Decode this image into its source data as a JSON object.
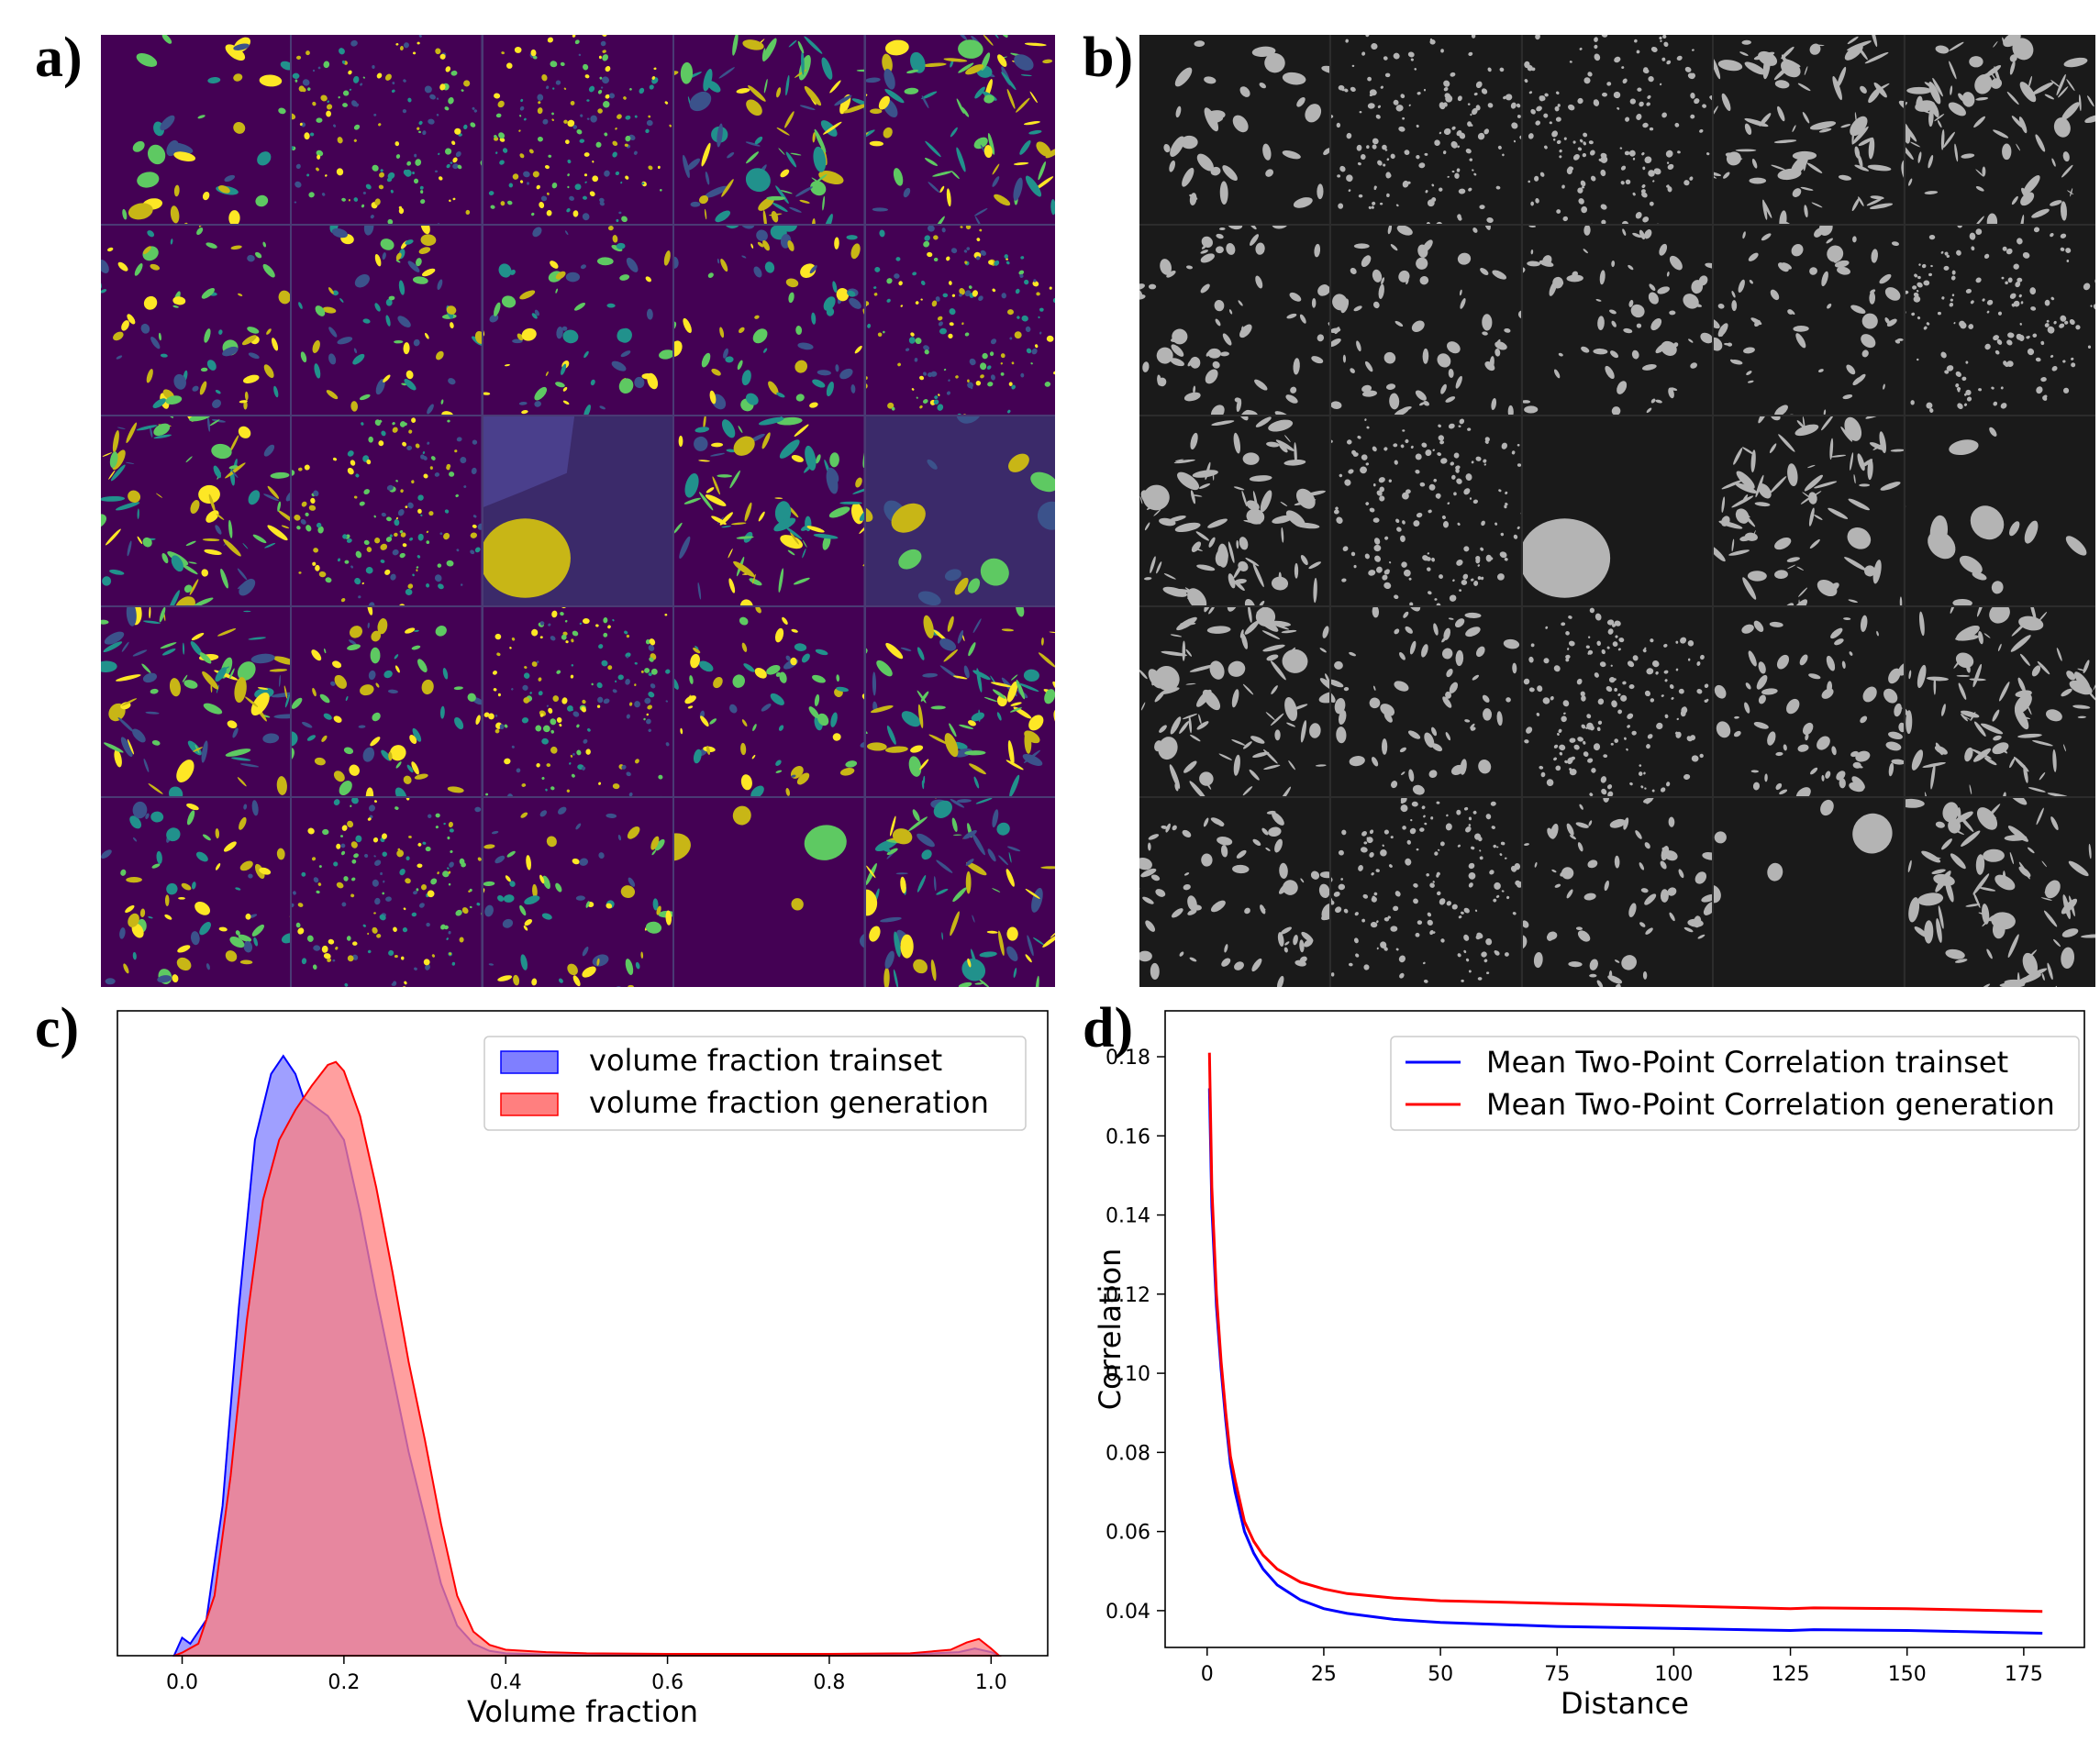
{
  "panels": {
    "a": {
      "letter": "a)"
    },
    "b": {
      "letter": "b)"
    },
    "c": {
      "letter": "c)"
    },
    "d": {
      "letter": "d)"
    }
  },
  "mosaics": {
    "a": {
      "colormap": "viridis",
      "background": "#440154",
      "foreground": [
        "#21918c",
        "#3b528b",
        "#5ec962",
        "#fde725",
        "#c8b616"
      ]
    },
    "b": {
      "colormap": "gray",
      "background": "#1a1a1a",
      "foreground": [
        "#b4b4b4"
      ]
    }
  },
  "chart_data": [
    {
      "panel": "c",
      "type": "area",
      "title": "",
      "xlabel": "Volume fraction",
      "ylabel": "",
      "xlim": [
        -0.08,
        1.07
      ],
      "ylim": [
        0,
        1
      ],
      "xticks": [
        "0.0",
        "0.2",
        "0.4",
        "0.6",
        "0.8",
        "1.0"
      ],
      "yticks_shown": false,
      "legend_position": "top-right",
      "series": [
        {
          "name": "volume fraction trainset",
          "color": "#0000ff",
          "fill": "#7f7fff",
          "x": [
            -0.01,
            0.0,
            0.01,
            0.03,
            0.05,
            0.07,
            0.09,
            0.11,
            0.125,
            0.14,
            0.15,
            0.16,
            0.18,
            0.2,
            0.22,
            0.24,
            0.26,
            0.28,
            0.3,
            0.32,
            0.34,
            0.36,
            0.38,
            0.4,
            0.45,
            0.5,
            0.6,
            0.7,
            0.8,
            0.9,
            0.96,
            0.98,
            1.0,
            1.01
          ],
          "y": [
            0.0,
            0.03,
            0.02,
            0.06,
            0.25,
            0.58,
            0.86,
            0.97,
            1.0,
            0.97,
            0.93,
            0.92,
            0.9,
            0.86,
            0.74,
            0.6,
            0.47,
            0.34,
            0.23,
            0.12,
            0.05,
            0.02,
            0.008,
            0.004,
            0.002,
            0.001,
            0.001,
            0.001,
            0.001,
            0.002,
            0.006,
            0.012,
            0.006,
            0.0
          ]
        },
        {
          "name": "volume fraction generation",
          "color": "#ff0000",
          "fill": "#ff7f7f",
          "x": [
            -0.01,
            0.0,
            0.02,
            0.04,
            0.06,
            0.08,
            0.1,
            0.12,
            0.14,
            0.16,
            0.18,
            0.19,
            0.2,
            0.22,
            0.24,
            0.26,
            0.28,
            0.3,
            0.32,
            0.34,
            0.36,
            0.38,
            0.4,
            0.45,
            0.5,
            0.6,
            0.7,
            0.8,
            0.9,
            0.95,
            0.97,
            0.985,
            1.0,
            1.01
          ],
          "y": [
            0.0,
            0.005,
            0.02,
            0.1,
            0.3,
            0.56,
            0.76,
            0.86,
            0.91,
            0.95,
            0.985,
            0.99,
            0.975,
            0.9,
            0.78,
            0.64,
            0.49,
            0.36,
            0.22,
            0.1,
            0.04,
            0.018,
            0.01,
            0.006,
            0.004,
            0.003,
            0.003,
            0.003,
            0.004,
            0.01,
            0.022,
            0.028,
            0.012,
            0.0
          ]
        }
      ]
    },
    {
      "panel": "d",
      "type": "line",
      "title": "",
      "xlabel": "Distance",
      "ylabel": "Correlation",
      "xlim": [
        -9,
        188
      ],
      "ylim": [
        0.0307,
        0.1916
      ],
      "xticks": [
        0,
        25,
        50,
        75,
        100,
        125,
        150,
        175
      ],
      "yticks": [
        0.04,
        0.06,
        0.08,
        0.1,
        0.12,
        0.14,
        0.16,
        0.18
      ],
      "grid": false,
      "legend_position": "top-right",
      "series": [
        {
          "name": "Mean Two-Point Correlation trainset",
          "color": "#0000ff",
          "x": [
            0.5,
            1,
            2,
            3,
            4,
            5,
            6,
            8,
            10,
            12,
            15,
            20,
            25,
            30,
            40,
            50,
            75,
            100,
            125,
            130,
            150,
            179
          ],
          "y": [
            0.172,
            0.142,
            0.117,
            0.101,
            0.088,
            0.077,
            0.07,
            0.06,
            0.0545,
            0.0505,
            0.0465,
            0.0427,
            0.0405,
            0.0393,
            0.0378,
            0.037,
            0.036,
            0.0355,
            0.035,
            0.0352,
            0.035,
            0.0343
          ]
        },
        {
          "name": "Mean Two-Point Correlation generation",
          "color": "#ff0000",
          "x": [
            0.5,
            1,
            2,
            3,
            4,
            5,
            6,
            8,
            10,
            12,
            15,
            20,
            25,
            30,
            40,
            50,
            75,
            100,
            125,
            130,
            150,
            179
          ],
          "y": [
            0.181,
            0.147,
            0.12,
            0.103,
            0.09,
            0.079,
            0.073,
            0.0625,
            0.0575,
            0.054,
            0.0505,
            0.0472,
            0.0455,
            0.0443,
            0.0432,
            0.0425,
            0.0418,
            0.0412,
            0.0405,
            0.0407,
            0.0405,
            0.0398
          ]
        }
      ]
    }
  ]
}
